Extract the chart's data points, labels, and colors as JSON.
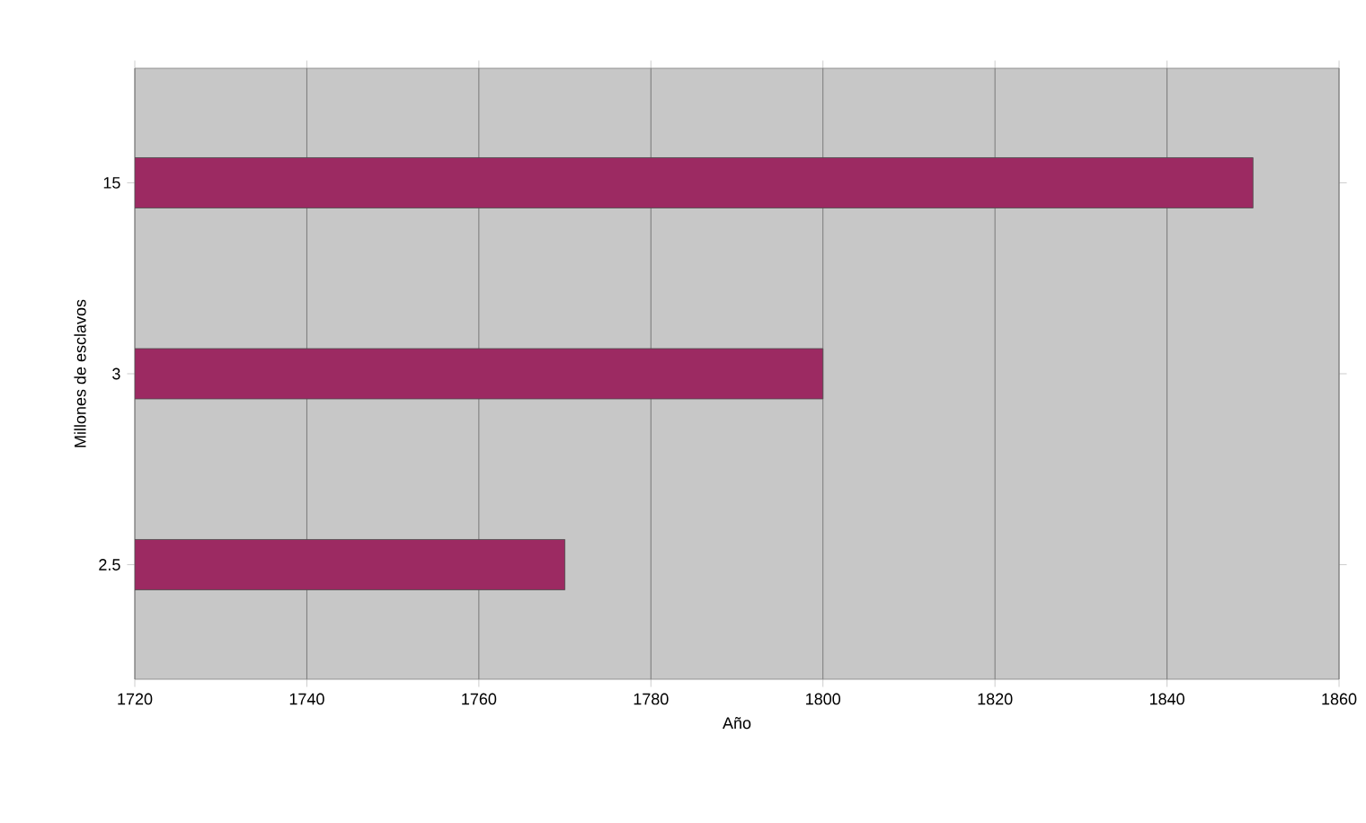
{
  "chart_data": {
    "type": "bar",
    "orientation": "horizontal",
    "xlabel": "Año",
    "ylabel": "Millones de esclavos",
    "categories": [
      "15",
      "3",
      "2.5"
    ],
    "values": [
      1850,
      1800,
      1770
    ],
    "color": "#9c2a62",
    "xlim": [
      1720,
      1860
    ],
    "xticks": [
      1720,
      1740,
      1760,
      1780,
      1800,
      1820,
      1840,
      1860
    ],
    "grid": "x"
  }
}
